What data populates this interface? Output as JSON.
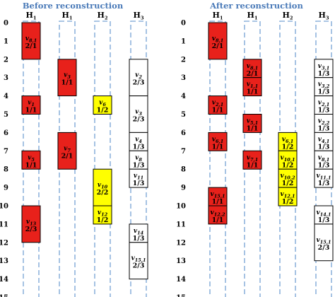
{
  "colors": {
    "red": "#e8211b",
    "yellow": "#ffff00",
    "white": "#ffffff",
    "dash": "#8fb4dc",
    "title": "#4a7ab8"
  },
  "axis_ticks": [
    "0",
    "1",
    "2",
    "3",
    "4",
    "5",
    "6",
    "7",
    "8",
    "9",
    "10",
    "11",
    "12",
    "13",
    "14",
    "15"
  ],
  "panels": [
    {
      "id": "before",
      "title": "Before reconstruction",
      "columns": [
        {
          "name": "H",
          "sub": "1"
        },
        {
          "name": "H",
          "sub": "1"
        },
        {
          "name": "H",
          "sub": "2"
        },
        {
          "name": "H",
          "sub": "3"
        }
      ],
      "tasks": [
        {
          "col": 0,
          "start": 0,
          "end": 2,
          "color": "red",
          "name": "v",
          "sub": "8,1",
          "frac": "2/1"
        },
        {
          "col": 0,
          "start": 4,
          "end": 5,
          "color": "red",
          "name": "v",
          "sub": "1",
          "frac": "1/1"
        },
        {
          "col": 0,
          "start": 7,
          "end": 8,
          "color": "red",
          "name": "v",
          "sub": "5",
          "frac": "1/1"
        },
        {
          "col": 0,
          "start": 10,
          "end": 12,
          "color": "red",
          "name": "v",
          "sub": "13",
          "frac": "2/3"
        },
        {
          "col": 1,
          "start": 2,
          "end": 4,
          "color": "red",
          "name": "v",
          "sub": "3",
          "frac": "1/1"
        },
        {
          "col": 1,
          "start": 6,
          "end": 8,
          "color": "red",
          "name": "v",
          "sub": "7",
          "frac": "2/1"
        },
        {
          "col": 2,
          "start": 4,
          "end": 5,
          "color": "yellow",
          "name": "v",
          "sub": "6",
          "frac": "1/2"
        },
        {
          "col": 2,
          "start": 8,
          "end": 10,
          "color": "yellow",
          "name": "v",
          "sub": "10",
          "frac": "2/2"
        },
        {
          "col": 2,
          "start": 10,
          "end": 11,
          "color": "yellow",
          "name": "v",
          "sub": "12",
          "frac": "1/2"
        },
        {
          "col": 3,
          "start": 2,
          "end": 4,
          "color": "white",
          "name": "v",
          "sub": "2",
          "frac": "2/3"
        },
        {
          "col": 3,
          "start": 4,
          "end": 6,
          "color": "white",
          "name": "v",
          "sub": "3",
          "frac": "2/3"
        },
        {
          "col": 3,
          "start": 6,
          "end": 7,
          "color": "white",
          "name": "v",
          "sub": "4",
          "frac": "1/3"
        },
        {
          "col": 3,
          "start": 7,
          "end": 8,
          "color": "white",
          "name": "v",
          "sub": "8",
          "frac": "1/3"
        },
        {
          "col": 3,
          "start": 8,
          "end": 9,
          "color": "white",
          "name": "v",
          "sub": "11",
          "frac": "1/3"
        },
        {
          "col": 3,
          "start": 11,
          "end": 12,
          "color": "white",
          "name": "v",
          "sub": "14",
          "frac": "1/3"
        },
        {
          "col": 3,
          "start": 12,
          "end": 14,
          "color": "white",
          "name": "v",
          "sub": "15,1",
          "frac": "2/3"
        }
      ]
    },
    {
      "id": "after",
      "title": "After reconstruction",
      "columns": [
        {
          "name": "H",
          "sub": "1"
        },
        {
          "name": "H",
          "sub": "1"
        },
        {
          "name": "H",
          "sub": "2"
        },
        {
          "name": "H",
          "sub": "3"
        }
      ],
      "tasks": [
        {
          "col": 0,
          "start": 0,
          "end": 2,
          "color": "red",
          "name": "v",
          "sub": "8,1",
          "frac": "2/1"
        },
        {
          "col": 0,
          "start": 4,
          "end": 5,
          "color": "red",
          "name": "v",
          "sub": "2,1",
          "frac": "1/1"
        },
        {
          "col": 0,
          "start": 6,
          "end": 7,
          "color": "red",
          "name": "v",
          "sub": "6,1",
          "frac": "1/1"
        },
        {
          "col": 0,
          "start": 9,
          "end": 10,
          "color": "red",
          "name": "v",
          "sub": "15,1",
          "frac": "1/1"
        },
        {
          "col": 0,
          "start": 10,
          "end": 11,
          "color": "red",
          "name": "v",
          "sub": "12,2",
          "frac": "1/1"
        },
        {
          "col": 1,
          "start": 2,
          "end": 3,
          "color": "red",
          "name": "v",
          "sub": "8,1",
          "frac": "2/1"
        },
        {
          "col": 1,
          "start": 3,
          "end": 4,
          "color": "red",
          "name": "v",
          "sub": "1,1",
          "frac": "1/1"
        },
        {
          "col": 1,
          "start": 5,
          "end": 6,
          "color": "red",
          "name": "v",
          "sub": "5,1",
          "frac": "1/1"
        },
        {
          "col": 1,
          "start": 7,
          "end": 8,
          "color": "red",
          "name": "v",
          "sub": "7,1",
          "frac": "1/1"
        },
        {
          "col": 2,
          "start": 6,
          "end": 7,
          "color": "yellow",
          "name": "v",
          "sub": "6,1",
          "frac": "1/2"
        },
        {
          "col": 2,
          "start": 7,
          "end": 8,
          "color": "yellow",
          "name": "v",
          "sub": "10,1",
          "frac": "1/2"
        },
        {
          "col": 2,
          "start": 8,
          "end": 9,
          "color": "yellow",
          "name": "v",
          "sub": "10,2",
          "frac": "1/2"
        },
        {
          "col": 2,
          "start": 9,
          "end": 10,
          "color": "yellow",
          "name": "v",
          "sub": "12,1",
          "frac": "1/2"
        },
        {
          "col": 3,
          "start": 2,
          "end": 3,
          "color": "white",
          "name": "v",
          "sub": "3,1",
          "frac": "1/3"
        },
        {
          "col": 3,
          "start": 3,
          "end": 4,
          "color": "white",
          "name": "v",
          "sub": "3,2",
          "frac": "1/3"
        },
        {
          "col": 3,
          "start": 4,
          "end": 5,
          "color": "white",
          "name": "v",
          "sub": "2,1",
          "frac": "1/3"
        },
        {
          "col": 3,
          "start": 5,
          "end": 6,
          "color": "white",
          "name": "v",
          "sub": "2,2",
          "frac": "1/3"
        },
        {
          "col": 3,
          "start": 6,
          "end": 7,
          "color": "white",
          "name": "v",
          "sub": "4,1",
          "frac": "1/3"
        },
        {
          "col": 3,
          "start": 7,
          "end": 8,
          "color": "white",
          "name": "v",
          "sub": "8,1",
          "frac": "1/3"
        },
        {
          "col": 3,
          "start": 8,
          "end": 9,
          "color": "white",
          "name": "v",
          "sub": "11,1",
          "frac": "1/3"
        },
        {
          "col": 3,
          "start": 10,
          "end": 11,
          "color": "white",
          "name": "v",
          "sub": "14,1",
          "frac": "1/3"
        },
        {
          "col": 3,
          "start": 11,
          "end": 13,
          "color": "white",
          "name": "v",
          "sub": "15,1",
          "frac": "2/3"
        }
      ]
    }
  ]
}
